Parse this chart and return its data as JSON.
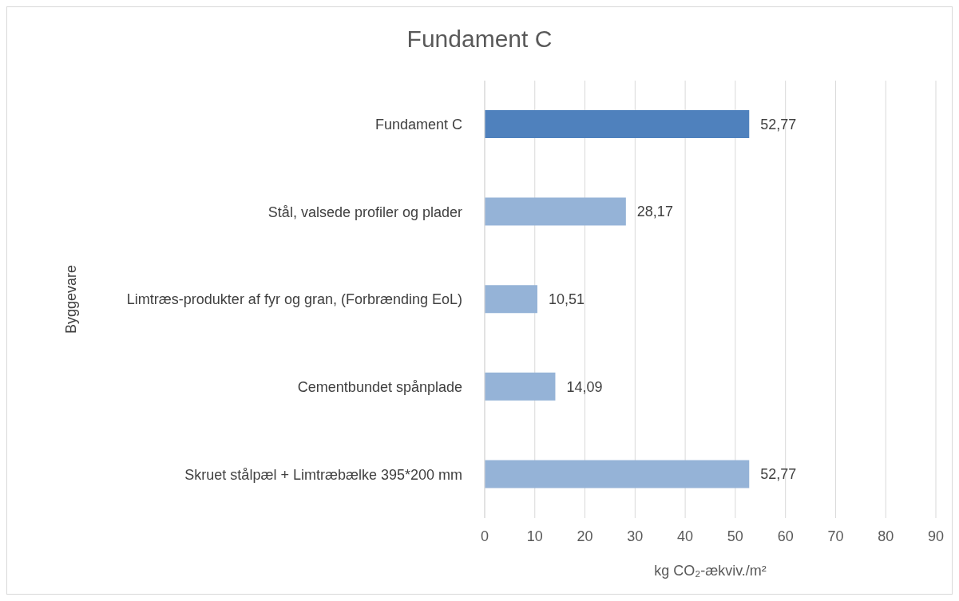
{
  "chart_data": {
    "type": "bar",
    "orientation": "horizontal",
    "title": "Fundament C",
    "xlabel": "kg CO₂-ækviv./m²",
    "ylabel": "Byggevare",
    "categories": [
      "Fundament C",
      "Stål, valsede profiler og plader",
      "Limtræs-produkter af fyr og gran, (Forbrænding EoL)",
      "Cementbundet spånplade",
      "Skruet stålpæl + Limtræbælke 395*200 mm"
    ],
    "values": [
      52.77,
      28.17,
      10.51,
      14.09,
      52.77
    ],
    "colors": [
      "#4f81bd",
      "#95b3d7",
      "#95b3d7",
      "#95b3d7",
      "#95b3d7"
    ],
    "value_labels": [
      "52,77",
      "28,17",
      "10,51",
      "14,09",
      "52,77"
    ],
    "xlim": [
      0,
      90
    ],
    "xticks": [
      0,
      10,
      20,
      30,
      40,
      50,
      60,
      70,
      80,
      90
    ],
    "grid": "x"
  }
}
